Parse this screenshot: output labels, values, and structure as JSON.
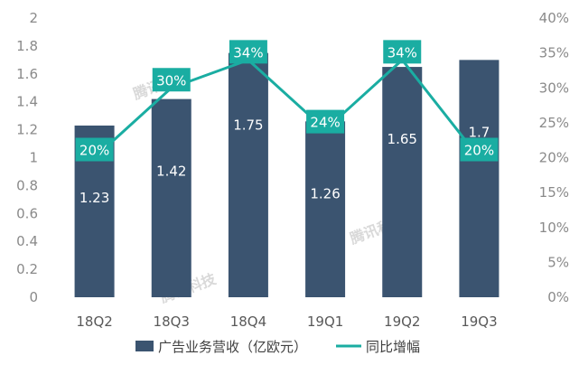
{
  "chart_data": {
    "type": "bar",
    "categories": [
      "18Q2",
      "18Q3",
      "18Q4",
      "19Q1",
      "19Q2",
      "19Q3"
    ],
    "series": [
      {
        "name": "广告业务营收（亿欧元）",
        "type": "bar",
        "axis": "left",
        "values": [
          1.23,
          1.42,
          1.75,
          1.26,
          1.65,
          1.7
        ],
        "labels": [
          "1.23",
          "1.42",
          "1.75",
          "1.26",
          "1.65",
          "1.7"
        ],
        "color": "#3b5470"
      },
      {
        "name": "同比增幅",
        "type": "line",
        "axis": "right",
        "values": [
          20,
          30,
          34,
          24,
          34,
          20
        ],
        "labels": [
          "20%",
          "30%",
          "34%",
          "24%",
          "34%",
          "20%"
        ],
        "color": "#1aada2"
      }
    ],
    "y_left": {
      "min": 0,
      "max": 2,
      "ticks": [
        "0",
        "0.2",
        "0.4",
        "0.6",
        "0.8",
        "1",
        "1.2",
        "1.4",
        "1.6",
        "1.8",
        "2"
      ]
    },
    "y_right": {
      "min": 0,
      "max": 40,
      "ticks": [
        "0%",
        "5%",
        "10%",
        "15%",
        "20%",
        "25%",
        "30%",
        "35%",
        "40%"
      ]
    },
    "legend_position": "bottom",
    "watermark": "腾讯科技"
  }
}
